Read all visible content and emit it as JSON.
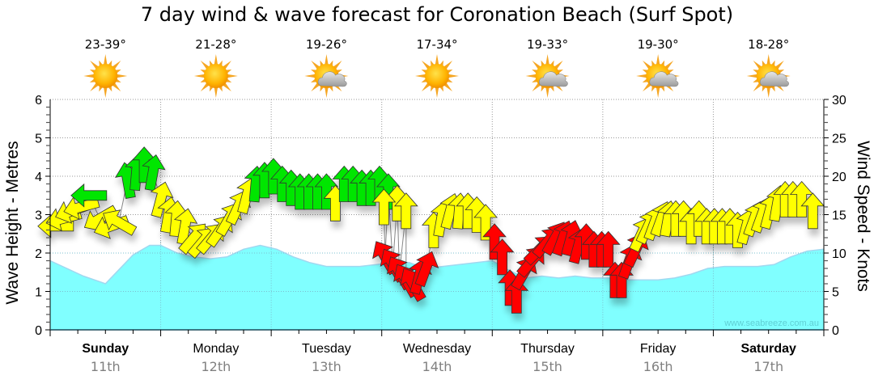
{
  "chart_data": {
    "type": "area",
    "title": "7 day wind & wave forecast for Coronation Beach (Surf Spot)",
    "ylabel_left": "Wave Height - Metres",
    "ylabel_right": "Wind Speed - Knots",
    "ylim_left": [
      0,
      6
    ],
    "ylim_right": [
      0,
      30
    ],
    "yticks_left": [
      "0",
      "1",
      "2",
      "3",
      "4",
      "5",
      "6"
    ],
    "yticks_right": [
      "0",
      "5",
      "10",
      "15",
      "20",
      "25",
      "30"
    ],
    "grid": true,
    "watermark": "www.seabreeze.com.au",
    "days": [
      {
        "day": "Sunday",
        "date": "11th",
        "temp": "23-39°",
        "icon": "sunny-icon",
        "bold": true
      },
      {
        "day": "Monday",
        "date": "12th",
        "temp": "21-28°",
        "icon": "sunny-icon",
        "bold": false
      },
      {
        "day": "Tuesday",
        "date": "13th",
        "temp": "19-26°",
        "icon": "partly-cloudy-icon",
        "bold": false
      },
      {
        "day": "Wednesday",
        "date": "14th",
        "temp": "17-34°",
        "icon": "sunny-icon",
        "bold": false
      },
      {
        "day": "Thursday",
        "date": "15th",
        "temp": "19-33°",
        "icon": "partly-cloudy-icon",
        "bold": false
      },
      {
        "day": "Friday",
        "date": "16th",
        "temp": "19-30°",
        "icon": "partly-cloudy-icon",
        "bold": false
      },
      {
        "day": "Saturday",
        "date": "17th",
        "temp": "18-28°",
        "icon": "partly-cloudy-icon",
        "bold": true
      }
    ],
    "colors": {
      "wave_fill": "#80ffff",
      "wave_line": "#a0d8f0",
      "wind_light": "#ff0000",
      "wind_moderate": "#ffff00",
      "wind_strong": "#00e600"
    },
    "wave_series": {
      "name": "Wave Height (m)",
      "x_days": [
        0,
        0.15,
        0.3,
        0.45,
        0.5,
        0.6,
        0.75,
        0.9,
        1.0,
        1.15,
        1.3,
        1.45,
        1.6,
        1.75,
        1.9,
        2.05,
        2.2,
        2.35,
        2.5,
        2.65,
        2.8,
        2.95,
        3.1,
        3.25,
        3.4,
        3.55,
        3.7,
        3.85,
        4.0,
        4.15,
        4.3,
        4.45,
        4.6,
        4.75,
        4.9,
        5.05,
        5.2,
        5.35,
        5.5,
        5.65,
        5.8,
        5.95,
        6.1,
        6.25,
        6.4,
        6.55,
        6.7,
        6.85,
        7.0
      ],
      "values": [
        1.8,
        1.6,
        1.4,
        1.25,
        1.2,
        1.5,
        1.95,
        2.2,
        2.2,
        2.0,
        1.9,
        1.85,
        1.9,
        2.1,
        2.2,
        2.1,
        1.9,
        1.75,
        1.65,
        1.65,
        1.65,
        1.7,
        1.75,
        1.75,
        1.6,
        1.65,
        1.7,
        1.75,
        1.8,
        1.55,
        1.35,
        1.4,
        1.35,
        1.4,
        1.35,
        1.35,
        1.3,
        1.3,
        1.3,
        1.35,
        1.45,
        1.6,
        1.65,
        1.65,
        1.65,
        1.7,
        1.9,
        2.05,
        2.1
      ]
    },
    "wind_series": {
      "name": "Wind Speed (knots)",
      "points": [
        {
          "t": 0.05,
          "kt": 13.5,
          "dir": 270,
          "c": "moderate"
        },
        {
          "t": 0.12,
          "kt": 14.5,
          "dir": 255,
          "c": "moderate"
        },
        {
          "t": 0.2,
          "kt": 15.5,
          "dir": 250,
          "c": "moderate"
        },
        {
          "t": 0.28,
          "kt": 16.0,
          "dir": 255,
          "c": "moderate"
        },
        {
          "t": 0.35,
          "kt": 17.5,
          "dir": 270,
          "c": "strong"
        },
        {
          "t": 0.45,
          "kt": 14.5,
          "dir": 240,
          "c": "moderate"
        },
        {
          "t": 0.55,
          "kt": 13.5,
          "dir": 250,
          "c": "moderate"
        },
        {
          "t": 0.62,
          "kt": 14.0,
          "dir": 300,
          "c": "moderate"
        },
        {
          "t": 0.7,
          "kt": 19.5,
          "dir": 350,
          "c": "strong"
        },
        {
          "t": 0.78,
          "kt": 20.5,
          "dir": 5,
          "c": "strong"
        },
        {
          "t": 0.85,
          "kt": 21.5,
          "dir": 0,
          "c": "strong"
        },
        {
          "t": 0.93,
          "kt": 20.5,
          "dir": 10,
          "c": "strong"
        },
        {
          "t": 1.0,
          "kt": 17.0,
          "dir": 15,
          "c": "moderate"
        },
        {
          "t": 1.07,
          "kt": 15.0,
          "dir": 10,
          "c": "moderate"
        },
        {
          "t": 1.14,
          "kt": 14.5,
          "dir": 5,
          "c": "moderate"
        },
        {
          "t": 1.22,
          "kt": 13.5,
          "dir": 10,
          "c": "moderate"
        },
        {
          "t": 1.3,
          "kt": 12.0,
          "dir": 40,
          "c": "moderate"
        },
        {
          "t": 1.38,
          "kt": 11.5,
          "dir": 40,
          "c": "moderate"
        },
        {
          "t": 1.46,
          "kt": 12.0,
          "dir": 40,
          "c": "moderate"
        },
        {
          "t": 1.54,
          "kt": 13.0,
          "dir": 35,
          "c": "moderate"
        },
        {
          "t": 1.62,
          "kt": 14.5,
          "dir": 30,
          "c": "moderate"
        },
        {
          "t": 1.7,
          "kt": 16.0,
          "dir": 25,
          "c": "moderate"
        },
        {
          "t": 1.78,
          "kt": 17.5,
          "dir": 15,
          "c": "moderate"
        },
        {
          "t": 1.86,
          "kt": 19.0,
          "dir": 5,
          "c": "strong"
        },
        {
          "t": 1.94,
          "kt": 19.5,
          "dir": 0,
          "c": "strong"
        },
        {
          "t": 2.02,
          "kt": 20.0,
          "dir": 0,
          "c": "strong"
        },
        {
          "t": 2.1,
          "kt": 19.0,
          "dir": 0,
          "c": "strong"
        },
        {
          "t": 2.18,
          "kt": 18.5,
          "dir": 0,
          "c": "strong"
        },
        {
          "t": 2.26,
          "kt": 18.0,
          "dir": 0,
          "c": "strong"
        },
        {
          "t": 2.34,
          "kt": 18.0,
          "dir": 0,
          "c": "strong"
        },
        {
          "t": 2.42,
          "kt": 18.0,
          "dir": 0,
          "c": "strong"
        },
        {
          "t": 2.5,
          "kt": 18.0,
          "dir": 0,
          "c": "strong"
        },
        {
          "t": 2.58,
          "kt": 16.5,
          "dir": 0,
          "c": "moderate"
        },
        {
          "t": 2.66,
          "kt": 19.0,
          "dir": 0,
          "c": "strong"
        },
        {
          "t": 2.74,
          "kt": 19.0,
          "dir": 0,
          "c": "strong"
        },
        {
          "t": 2.82,
          "kt": 18.5,
          "dir": 0,
          "c": "strong"
        },
        {
          "t": 2.9,
          "kt": 18.5,
          "dir": 0,
          "c": "strong"
        },
        {
          "t": 2.98,
          "kt": 19.0,
          "dir": 0,
          "c": "strong"
        },
        {
          "t": 3.06,
          "kt": 18.0,
          "dir": 0,
          "c": "strong"
        },
        {
          "t": 3.14,
          "kt": 16.5,
          "dir": 0,
          "c": "moderate"
        },
        {
          "t": 3.22,
          "kt": 15.5,
          "dir": 0,
          "c": "moderate"
        },
        {
          "t": 3.02,
          "kt": 16.0,
          "dir": 0,
          "c": "moderate"
        },
        {
          "t": 3.03,
          "kt": 9.5,
          "dir": 330,
          "c": "light"
        },
        {
          "t": 3.1,
          "kt": 8.5,
          "dir": 330,
          "c": "light"
        },
        {
          "t": 3.16,
          "kt": 7.5,
          "dir": 330,
          "c": "light"
        },
        {
          "t": 3.22,
          "kt": 6.5,
          "dir": 330,
          "c": "light"
        },
        {
          "t": 3.28,
          "kt": 6.0,
          "dir": 330,
          "c": "light"
        },
        {
          "t": 3.34,
          "kt": 7.0,
          "dir": 15,
          "c": "light"
        },
        {
          "t": 3.4,
          "kt": 8.0,
          "dir": 20,
          "c": "light"
        },
        {
          "t": 3.47,
          "kt": 13.0,
          "dir": 0,
          "c": "moderate"
        },
        {
          "t": 3.54,
          "kt": 14.5,
          "dir": 10,
          "c": "moderate"
        },
        {
          "t": 3.62,
          "kt": 15.5,
          "dir": 15,
          "c": "moderate"
        },
        {
          "t": 3.7,
          "kt": 15.5,
          "dir": 5,
          "c": "moderate"
        },
        {
          "t": 3.78,
          "kt": 15.5,
          "dir": 0,
          "c": "moderate"
        },
        {
          "t": 3.86,
          "kt": 15.0,
          "dir": 0,
          "c": "moderate"
        },
        {
          "t": 3.94,
          "kt": 14.0,
          "dir": 0,
          "c": "moderate"
        },
        {
          "t": 4.02,
          "kt": 11.5,
          "dir": 0,
          "c": "light"
        },
        {
          "t": 4.09,
          "kt": 9.5,
          "dir": 0,
          "c": "light"
        },
        {
          "t": 4.16,
          "kt": 5.5,
          "dir": 0,
          "c": "light"
        },
        {
          "t": 4.22,
          "kt": 4.5,
          "dir": 0,
          "c": "light"
        },
        {
          "t": 4.29,
          "kt": 7.5,
          "dir": 30,
          "c": "light"
        },
        {
          "t": 4.36,
          "kt": 9.0,
          "dir": 40,
          "c": "light"
        },
        {
          "t": 4.43,
          "kt": 10.5,
          "dir": 45,
          "c": "light"
        },
        {
          "t": 4.5,
          "kt": 11.5,
          "dir": 40,
          "c": "light"
        },
        {
          "t": 4.57,
          "kt": 12.0,
          "dir": 30,
          "c": "light"
        },
        {
          "t": 4.64,
          "kt": 12.0,
          "dir": 20,
          "c": "light"
        },
        {
          "t": 4.71,
          "kt": 12.0,
          "dir": 15,
          "c": "light"
        },
        {
          "t": 4.78,
          "kt": 11.0,
          "dir": 15,
          "c": "light"
        },
        {
          "t": 4.85,
          "kt": 11.5,
          "dir": 0,
          "c": "light"
        },
        {
          "t": 4.92,
          "kt": 10.5,
          "dir": 0,
          "c": "light"
        },
        {
          "t": 4.99,
          "kt": 10.5,
          "dir": 0,
          "c": "light"
        },
        {
          "t": 5.05,
          "kt": 10.5,
          "dir": 0,
          "c": "light"
        },
        {
          "t": 5.11,
          "kt": 6.5,
          "dir": 0,
          "c": "light"
        },
        {
          "t": 5.17,
          "kt": 6.5,
          "dir": 0,
          "c": "light"
        },
        {
          "t": 5.24,
          "kt": 9.0,
          "dir": 20,
          "c": "light"
        },
        {
          "t": 5.3,
          "kt": 10.5,
          "dir": 25,
          "c": "light"
        },
        {
          "t": 5.35,
          "kt": 12.5,
          "dir": 25,
          "c": "moderate"
        },
        {
          "t": 5.41,
          "kt": 13.5,
          "dir": 25,
          "c": "moderate"
        },
        {
          "t": 5.47,
          "kt": 14.0,
          "dir": 20,
          "c": "moderate"
        },
        {
          "t": 5.53,
          "kt": 14.5,
          "dir": 20,
          "c": "moderate"
        },
        {
          "t": 5.59,
          "kt": 14.5,
          "dir": 10,
          "c": "moderate"
        },
        {
          "t": 5.66,
          "kt": 14.5,
          "dir": 0,
          "c": "moderate"
        },
        {
          "t": 5.73,
          "kt": 14.5,
          "dir": 0,
          "c": "moderate"
        },
        {
          "t": 5.8,
          "kt": 13.5,
          "dir": 0,
          "c": "moderate"
        },
        {
          "t": 5.87,
          "kt": 14.5,
          "dir": 0,
          "c": "moderate"
        },
        {
          "t": 5.94,
          "kt": 13.5,
          "dir": 0,
          "c": "moderate"
        },
        {
          "t": 6.01,
          "kt": 13.5,
          "dir": 0,
          "c": "moderate"
        },
        {
          "t": 6.08,
          "kt": 13.5,
          "dir": 0,
          "c": "moderate"
        },
        {
          "t": 6.15,
          "kt": 13.5,
          "dir": 0,
          "c": "moderate"
        },
        {
          "t": 6.22,
          "kt": 13.0,
          "dir": 0,
          "c": "moderate"
        },
        {
          "t": 6.3,
          "kt": 13.5,
          "dir": 15,
          "c": "moderate"
        },
        {
          "t": 6.37,
          "kt": 14.5,
          "dir": 20,
          "c": "moderate"
        },
        {
          "t": 6.44,
          "kt": 15.0,
          "dir": 20,
          "c": "moderate"
        },
        {
          "t": 6.51,
          "kt": 15.5,
          "dir": 15,
          "c": "moderate"
        },
        {
          "t": 6.58,
          "kt": 16.5,
          "dir": 10,
          "c": "moderate"
        },
        {
          "t": 6.65,
          "kt": 17.0,
          "dir": 0,
          "c": "moderate"
        },
        {
          "t": 6.72,
          "kt": 17.0,
          "dir": 0,
          "c": "moderate"
        },
        {
          "t": 6.8,
          "kt": 17.0,
          "dir": 0,
          "c": "moderate"
        },
        {
          "t": 6.9,
          "kt": 15.5,
          "dir": 0,
          "c": "moderate"
        }
      ]
    }
  }
}
